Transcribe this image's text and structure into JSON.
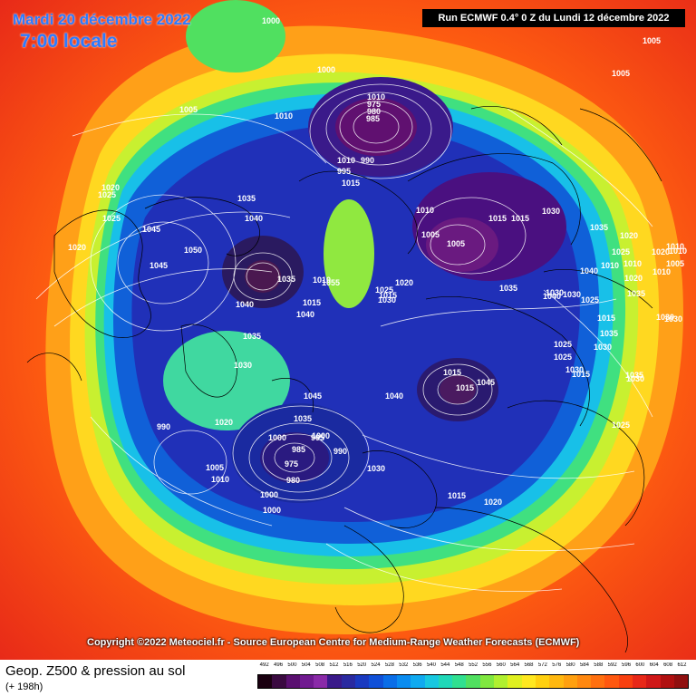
{
  "header": {
    "date": "Mardi 20 décembre 2022",
    "time": "7:00 locale",
    "run": "Run ECMWF 0.4° 0 Z du Lundi 12 décembre 2022"
  },
  "footer": {
    "copyright": "Copyright ©2022 Meteociel.fr - Source European Centre for Medium-Range Weather Forecasts (ECMWF)",
    "product": "Geop. Z500 & pression au sol",
    "lead_time": "(+ 198h)"
  },
  "legend": {
    "values": [
      "492",
      "496",
      "500",
      "504",
      "508",
      "512",
      "516",
      "520",
      "524",
      "528",
      "532",
      "536",
      "540",
      "544",
      "548",
      "552",
      "556",
      "560",
      "564",
      "568",
      "572",
      "576",
      "580",
      "584",
      "588",
      "592",
      "596",
      "600",
      "604",
      "608",
      "612"
    ],
    "colors": [
      "#1a0010",
      "#3a0a40",
      "#5a1070",
      "#701a90",
      "#8a2aa8",
      "#3a1a8a",
      "#2a2aa0",
      "#1a3ac0",
      "#1050d8",
      "#0a6ee8",
      "#0a8cf0",
      "#10aaf0",
      "#18c8e0",
      "#20d8b8",
      "#30e090",
      "#50e060",
      "#80e840",
      "#b0f030",
      "#e0f020",
      "#ffe820",
      "#ffd010",
      "#ffb810",
      "#ffa010",
      "#ff8810",
      "#ff7010",
      "#ff5810",
      "#f84010",
      "#e82818",
      "#d01818",
      "#b01010",
      "#901010"
    ]
  },
  "pressure_labels": [
    "1000",
    "1005",
    "1010",
    "1005",
    "1005",
    "1000",
    "1010",
    "975",
    "980",
    "985",
    "990",
    "995",
    "1010",
    "1015",
    "1020",
    "1020",
    "1025",
    "1025",
    "1035",
    "1040",
    "1045",
    "1050",
    "1045",
    "1040",
    "1035",
    "1015",
    "1010",
    "1035",
    "1030",
    "1040",
    "1045",
    "1035",
    "1055",
    "1020",
    "1015",
    "1025",
    "1030",
    "1035",
    "1010",
    "1005",
    "1005",
    "1015",
    "1015",
    "1030",
    "1035",
    "1030",
    "1020",
    "1025",
    "1030",
    "1010",
    "1015",
    "1015",
    "1045",
    "1040",
    "1020",
    "1000",
    "995",
    "990",
    "975",
    "980",
    "985",
    "990",
    "1000",
    "1005",
    "1010",
    "1000",
    "1000",
    "1015",
    "1020",
    "1030",
    "1040",
    "1035",
    "1030",
    "1025",
    "1025",
    "1030",
    "1030",
    "1025",
    "1020",
    "1020",
    "1015",
    "1015",
    "1010",
    "1035",
    "1030",
    "1035",
    "1025",
    "1040",
    "1030",
    "1010",
    "1005",
    "1010",
    "1010"
  ],
  "map_colors": {
    "deep_low": "#4a0a5a",
    "low": "#1a2ab0",
    "mid_low": "#0a7ee8",
    "mid": "#30e0b0",
    "mid_high": "#b8f030",
    "high": "#ffd020",
    "very_high": "#ff8010",
    "outer": "#f83a18"
  }
}
